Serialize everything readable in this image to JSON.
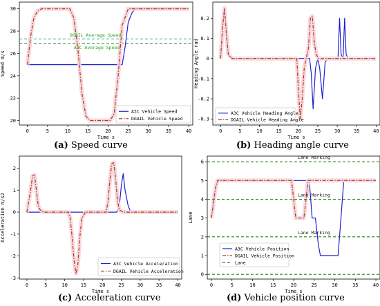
{
  "colors": {
    "a3c": "#1f1fd1",
    "dgail": "#b5341e",
    "shade": "#f6d6dc",
    "avg_green": "#1aa81a",
    "avg_teal": "#2a9a9a",
    "lane": "#2e7d1f",
    "lane_text": "#1a1a1a"
  },
  "captions": [
    {
      "tag": "(a)",
      "text": " Speed curve"
    },
    {
      "tag": "(b)",
      "text": " Heading angle curve"
    },
    {
      "tag": "(c)",
      "text": " Acceleration curve"
    },
    {
      "tag": "(d)",
      "text": " Vehicle position curve"
    }
  ],
  "chart_data": [
    {
      "type": "line",
      "xlabel": "Time s",
      "ylabel": "Speed m/s",
      "xlim": [
        -2,
        41
      ],
      "ylim": [
        19.6,
        30.6
      ],
      "xticks": [
        0,
        5,
        10,
        15,
        20,
        25,
        30,
        35,
        40
      ],
      "yticks": [
        20,
        22,
        24,
        26,
        28,
        30
      ],
      "legend": "bottom-right",
      "annotations": [
        {
          "text": "DGAIL Average Speed",
          "x": 10.5,
          "y": 27.5,
          "color": "avg_green"
        },
        {
          "text": "A3C Average Speed",
          "x": 11.5,
          "y": 26.4,
          "color": "avg_green"
        }
      ],
      "hlines": [
        {
          "y": 27.3,
          "color": "avg_teal",
          "style": "dashed"
        },
        {
          "y": 26.9,
          "color": "lane",
          "style": "dashed"
        }
      ],
      "series": [
        {
          "name": "A3C Vehicle Speed",
          "color": "a3c",
          "style": "solid",
          "x": [
            0,
            23.5,
            24.2,
            25,
            26,
            27,
            40
          ],
          "y": [
            25,
            25,
            26.5,
            28.8,
            29.7,
            30,
            30
          ]
        },
        {
          "name": "DGAIL Vehicle Speed",
          "color": "dgail",
          "style": "dashdot",
          "shade": true,
          "x": [
            0,
            0.8,
            1.6,
            2.5,
            3.5,
            10.5,
            11.5,
            12.5,
            13.5,
            14.5,
            15.5,
            20.5,
            21.5,
            22.5,
            23.5,
            25,
            40
          ],
          "y": [
            25,
            27.5,
            29.2,
            29.8,
            30,
            30,
            29.2,
            26.5,
            22.5,
            20.4,
            20,
            20,
            20.6,
            24,
            28.5,
            30,
            30
          ]
        }
      ]
    },
    {
      "type": "line",
      "xlabel": "Time s",
      "ylabel": "Heading Angle rad",
      "xlim": [
        -2,
        41
      ],
      "ylim": [
        -0.33,
        0.28
      ],
      "xticks": [
        0,
        5,
        10,
        15,
        20,
        25,
        30,
        35,
        40
      ],
      "yticks": [
        -0.3,
        -0.2,
        -0.1,
        0.0,
        0.1,
        0.2
      ],
      "legend": "bottom-left",
      "series": [
        {
          "name": "A3C Vehicle Heading Angle",
          "color": "a3c",
          "style": "solid",
          "x": [
            0,
            0.5,
            1,
            1.5,
            2,
            3,
            22.9,
            23.3,
            23.8,
            24.4,
            25,
            25.5,
            26.2,
            26.9,
            27.5,
            30.2,
            30.6,
            31,
            31.5,
            31.9,
            32.3,
            32.8,
            40
          ],
          "y": [
            0,
            0.15,
            0.25,
            0.12,
            0.02,
            0,
            0,
            -0.07,
            -0.25,
            -0.05,
            0,
            -0.05,
            -0.2,
            -0.02,
            0,
            0,
            0.2,
            0.02,
            0,
            0.2,
            0.02,
            0,
            0
          ]
        },
        {
          "name": "DGAIL Vehicle Heading Angle",
          "color": "dgail",
          "style": "dashdot",
          "shade": true,
          "x": [
            0,
            0.5,
            1,
            1.5,
            2,
            3,
            19.6,
            20,
            20.5,
            21,
            21.5,
            22,
            22.6,
            23.1,
            23.6,
            24.1,
            24.6,
            25.2,
            26,
            40
          ],
          "y": [
            0,
            0.15,
            0.25,
            0.12,
            0.02,
            0,
            0,
            -0.15,
            -0.3,
            -0.2,
            -0.05,
            0,
            0.05,
            0.2,
            0.21,
            0.08,
            0.02,
            0,
            0,
            0
          ]
        }
      ]
    },
    {
      "type": "line",
      "xlabel": "Time s",
      "ylabel": "Acceleration m/s2",
      "xlim": [
        -2,
        41
      ],
      "ylim": [
        -3.05,
        2.55
      ],
      "xticks": [
        0,
        5,
        10,
        15,
        20,
        25,
        30,
        35,
        40
      ],
      "yticks": [
        -3,
        -2,
        -1,
        0,
        1,
        2
      ],
      "legend": "bottom-right",
      "series": [
        {
          "name": "A3C Vehicle Acceleration",
          "color": "a3c",
          "style": "solid",
          "x": [
            0,
            23.8,
            24.5,
            25,
            25.5,
            26,
            26.8,
            27.5,
            40
          ],
          "y": [
            0,
            0,
            0.3,
            1.2,
            1.75,
            1.0,
            0.3,
            0,
            0
          ]
        },
        {
          "name": "DGAIL Vehicle Acceleration",
          "color": "dgail",
          "style": "dashdot",
          "shade": true,
          "x": [
            0,
            1,
            1.5,
            2,
            2.5,
            3,
            3.5,
            4.5,
            11,
            11.5,
            12,
            12.5,
            13,
            13.5,
            14,
            14.5,
            15.5,
            21,
            21.5,
            22,
            22.5,
            23,
            23.5,
            24,
            24.5,
            25.5,
            40
          ],
          "y": [
            0,
            1.0,
            1.65,
            1.7,
            1.0,
            0.3,
            0.1,
            0,
            0,
            -0.3,
            -1.2,
            -2.2,
            -2.8,
            -2.4,
            -1.2,
            -0.3,
            0,
            0,
            0.5,
            1.5,
            2.2,
            2.25,
            1.5,
            0.5,
            0.1,
            0,
            0
          ]
        }
      ]
    },
    {
      "type": "line",
      "xlabel": "Time s",
      "ylabel": "Lane",
      "xlim": [
        -1,
        41
      ],
      "ylim": [
        -0.25,
        6.3
      ],
      "xticks": [
        0,
        5,
        10,
        15,
        20,
        25,
        30,
        35,
        40
      ],
      "yticks": [
        0,
        1,
        2,
        3,
        4,
        5,
        6
      ],
      "legend": "bottom-left",
      "annotations": [
        {
          "text": "Lane Marking",
          "x": 21,
          "y": 6.15
        },
        {
          "text": "Lane Marking",
          "x": 21,
          "y": 4.15
        },
        {
          "text": "Lane Marking",
          "x": 21,
          "y": 2.15
        }
      ],
      "series": [
        {
          "name": "A3C Vehicle Position",
          "color": "a3c",
          "style": "solid",
          "x": [
            0,
            0.5,
            1,
            1.5,
            2,
            23.8,
            24.5,
            25.3,
            26,
            26.5,
            27,
            30,
            30.8,
            31.5,
            32.2,
            33,
            40
          ],
          "y": [
            3,
            3.8,
            4.6,
            5,
            5,
            5,
            3,
            3,
            1.6,
            1,
            1,
            1,
            1,
            3,
            5,
            5,
            5
          ]
        },
        {
          "name": "DGAIL Vehicle Position",
          "color": "dgail",
          "style": "dashdot",
          "shade": true,
          "x": [
            0,
            0.5,
            1,
            1.5,
            2,
            19.5,
            20,
            20.5,
            21.5,
            22.5,
            23,
            23.5,
            24.3,
            40
          ],
          "y": [
            3,
            3.8,
            4.6,
            5,
            5,
            5,
            4,
            3,
            3,
            3,
            4,
            5,
            5,
            5
          ]
        },
        {
          "name": "Lane",
          "color": "lane",
          "style": "dashed",
          "hlines": [
            0,
            2,
            4,
            6
          ]
        }
      ]
    }
  ]
}
